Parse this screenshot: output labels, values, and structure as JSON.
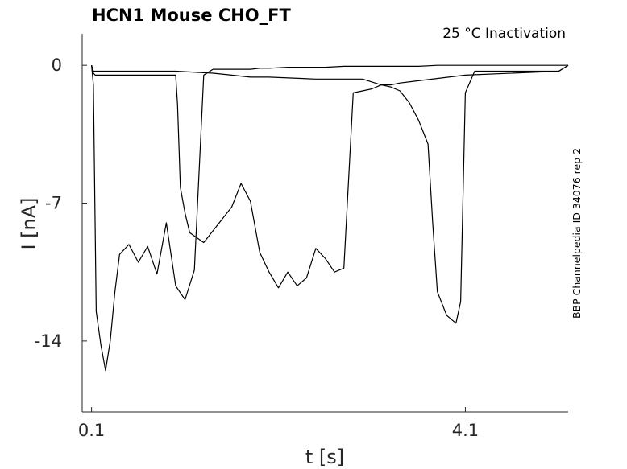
{
  "chart_data": {
    "type": "line",
    "title": "HCN1  Mouse  CHO_FT",
    "annotation": "25 °C  Inactivation",
    "side_label": "BBP Channelpedia ID 34076 rep 2",
    "xlabel": "t [s]",
    "ylabel": "I [nA]",
    "xlim": [
      0.0,
      5.2
    ],
    "ylim": [
      -17.6,
      1.6
    ],
    "x_ticks": [
      {
        "value": 0.1,
        "label": "0.1"
      },
      {
        "value": 4.1,
        "label": "4.1"
      }
    ],
    "y_ticks": [
      {
        "value": 0,
        "label": "0"
      },
      {
        "value": -7,
        "label": "-7"
      },
      {
        "value": -14,
        "label": "-14"
      }
    ],
    "grid": false,
    "colors": {
      "trace": "#000000",
      "axis": "#262626"
    },
    "series": [
      {
        "x": [
          0.1,
          0.12,
          0.15,
          0.2,
          0.25,
          0.3,
          0.35,
          0.4,
          0.5,
          0.6,
          0.7,
          0.8,
          0.9,
          1.0,
          1.1,
          1.2,
          1.3,
          1.4,
          1.5,
          1.6,
          1.7,
          1.8,
          1.9,
          2.0,
          2.2,
          2.4,
          2.6,
          2.8,
          3.0,
          3.2,
          3.4,
          3.6,
          3.8,
          4.1,
          4.11,
          5.1,
          5.2
        ],
        "y": [
          0,
          -1.0,
          -12.5,
          -14.2,
          -15.5,
          -14.0,
          -11.5,
          -9.6,
          -9.1,
          -10.0,
          -9.2,
          -10.6,
          -8.0,
          -11.2,
          -11.9,
          -10.4,
          -0.5,
          -0.2,
          -0.2,
          -0.2,
          -0.2,
          -0.2,
          -0.15,
          -0.15,
          -0.1,
          -0.1,
          -0.1,
          -0.05,
          -0.05,
          -0.05,
          -0.05,
          -0.05,
          0,
          0,
          0,
          0,
          0
        ]
      },
      {
        "x": [
          0.1,
          0.12,
          0.14,
          0.16,
          0.2,
          0.8,
          1.0,
          1.02,
          1.05,
          1.1,
          1.15,
          1.3,
          1.5,
          1.6,
          1.7,
          1.8,
          1.9,
          2.0,
          2.1,
          2.2,
          2.3,
          2.4,
          2.5,
          2.6,
          2.7,
          2.8,
          2.9,
          3.0,
          3.1,
          3.2,
          3.3,
          3.4,
          4.1,
          5.1,
          5.2
        ],
        "y": [
          0,
          -0.4,
          -0.5,
          -0.5,
          -0.5,
          -0.5,
          -0.5,
          -2.0,
          -6.2,
          -7.5,
          -8.5,
          -9.0,
          -7.8,
          -7.2,
          -6.0,
          -6.9,
          -9.5,
          -10.5,
          -11.3,
          -10.5,
          -11.2,
          -10.8,
          -9.3,
          -9.8,
          -10.5,
          -10.3,
          -1.4,
          -1.3,
          -1.2,
          -1.0,
          -1.0,
          -0.9,
          -0.5,
          -0.3,
          0
        ]
      },
      {
        "x": [
          0.1,
          0.12,
          0.2,
          1.0,
          1.4,
          1.6,
          1.8,
          2.0,
          2.5,
          2.8,
          3.0,
          3.2,
          3.3,
          3.4,
          3.5,
          3.6,
          3.65,
          3.7,
          3.75,
          3.8,
          3.9,
          4.0,
          4.05,
          4.1,
          4.2,
          4.5,
          5.0,
          5.1,
          5.2
        ],
        "y": [
          0,
          -0.3,
          -0.3,
          -0.3,
          -0.4,
          -0.5,
          -0.6,
          -0.6,
          -0.7,
          -0.7,
          -0.7,
          -1.0,
          -1.1,
          -1.3,
          -1.9,
          -2.8,
          -3.4,
          -4.0,
          -8.0,
          -11.5,
          -12.7,
          -13.1,
          -12.0,
          -1.4,
          -0.3,
          -0.3,
          -0.3,
          -0.3,
          0
        ]
      }
    ]
  }
}
